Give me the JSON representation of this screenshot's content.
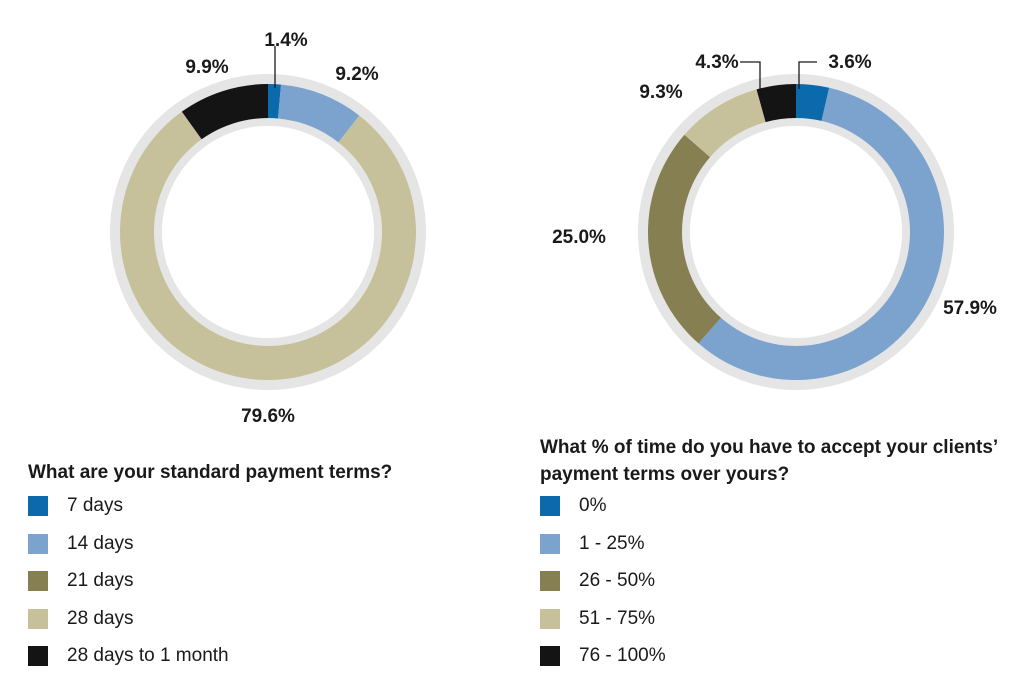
{
  "chart_data": [
    {
      "type": "pie",
      "title": "What are your standard payment terms?",
      "categories": [
        "7 days",
        "14 days",
        "21 days",
        "28 days",
        "28 days to 1 month"
      ],
      "values": [
        1.4,
        9.2,
        0,
        79.6,
        9.9
      ],
      "value_labels": [
        "1.4%",
        "9.2%",
        "",
        "79.6%",
        "9.9%"
      ],
      "colors": [
        "#0a6aab",
        "#7ba3cd",
        "#867f52",
        "#c7c19b",
        "#141414"
      ],
      "donut": true,
      "legend_placement": "bottom"
    },
    {
      "type": "pie",
      "title": "What % of time do you have to accept your clients’ payment terms over yours?",
      "categories": [
        "0%",
        "1 - 25%",
        "26 - 50%",
        "51 - 75%",
        "76 - 100%"
      ],
      "values": [
        3.6,
        57.9,
        25.0,
        9.3,
        4.3
      ],
      "value_labels": [
        "3.6%",
        "57.9%",
        "25.0%",
        "9.3%",
        "4.3%"
      ],
      "colors": [
        "#0a6aab",
        "#7ba3cd",
        "#867f52",
        "#c7c19b",
        "#141414"
      ],
      "donut": true,
      "legend_placement": "bottom"
    }
  ],
  "colors": {
    "ring_background": "#e5e5e5",
    "text": "#1a1a1a",
    "leader_line": "#1a1a1a"
  }
}
